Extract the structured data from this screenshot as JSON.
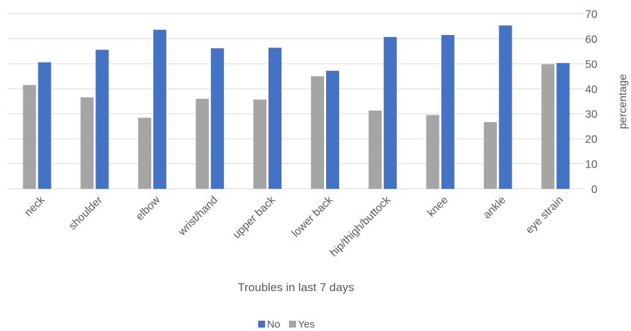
{
  "chart_data": {
    "type": "bar",
    "categories": [
      "neck",
      "shoulder",
      "elbow",
      "wrist/hand",
      "upper back",
      "lower back",
      "hip/thigh/buttock",
      "knee",
      "ankle",
      "eye strain"
    ],
    "series": [
      {
        "name": "Yes",
        "color": "#a5a5a5",
        "values": [
          41.5,
          36.6,
          28.4,
          36.0,
          35.7,
          45.0,
          31.3,
          29.5,
          26.7,
          49.8
        ]
      },
      {
        "name": "No",
        "color": "#4472c4",
        "values": [
          50.6,
          55.6,
          63.6,
          56.2,
          56.4,
          47.2,
          60.7,
          61.5,
          65.3,
          50.3
        ]
      }
    ],
    "xlabel": "Troubles in last 7 days",
    "ylabel": "percentage",
    "ylim": [
      0,
      70
    ],
    "yticks": [
      0,
      10,
      20,
      30,
      40,
      50,
      60,
      70
    ],
    "yaxis_position": "right",
    "legend": {
      "position": "bottom",
      "entries": [
        {
          "label": "No",
          "color": "#4472c4"
        },
        {
          "label": "Yes",
          "color": "#a5a5a5"
        }
      ]
    },
    "grid": true
  }
}
